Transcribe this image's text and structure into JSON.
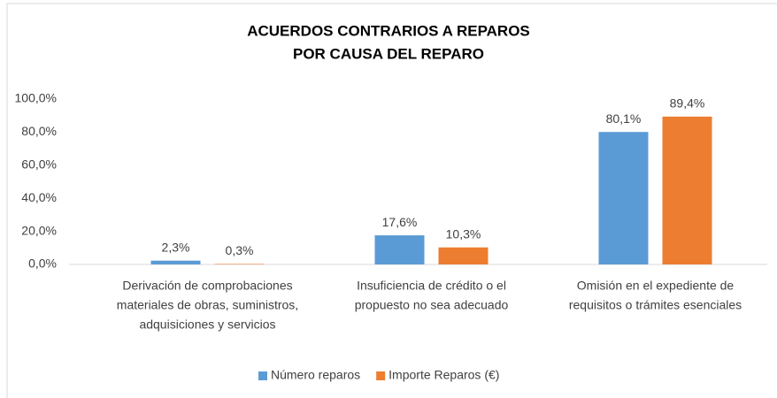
{
  "chart_data": {
    "type": "bar",
    "title": [
      "ACUERDOS CONTRARIOS A REPAROS",
      "POR CAUSA DEL REPARO"
    ],
    "categories": [
      [
        "Derivación de comprobaciones",
        "materiales de obras, suministros,",
        "adquisiciones y servicios"
      ],
      [
        "Insuficiencia de crédito o el",
        "propuesto no sea adecuado"
      ],
      [
        "Omisión en el expediente de",
        "requisitos o trámites esenciales"
      ]
    ],
    "series": [
      {
        "name": "Número reparos",
        "color": "#5b9bd5",
        "values": [
          2.3,
          17.6,
          80.1
        ],
        "value_labels": [
          "2,3%",
          "17,6%",
          "80,1%"
        ]
      },
      {
        "name": "Importe Reparos (€)",
        "color": "#ed7d31",
        "values": [
          0.3,
          10.3,
          89.4
        ],
        "value_labels": [
          "0,3%",
          "10,3%",
          "89,4%"
        ]
      }
    ],
    "ylim": [
      0,
      100
    ],
    "yticks": [
      {
        "value": 0,
        "label": "0,0%"
      },
      {
        "value": 20,
        "label": "20,0%"
      },
      {
        "value": 40,
        "label": "40,0%"
      },
      {
        "value": 60,
        "label": "60,0%"
      },
      {
        "value": 80,
        "label": "80,0%"
      },
      {
        "value": 100,
        "label": "100,0%"
      }
    ],
    "grid": false,
    "legend": "bottom"
  }
}
